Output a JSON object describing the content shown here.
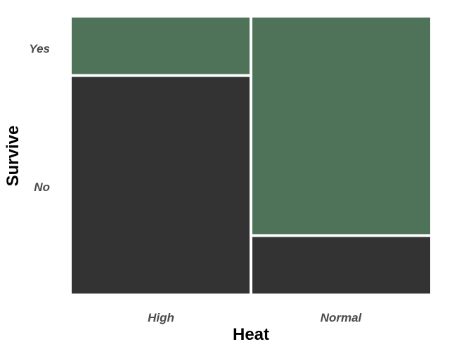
{
  "chart_data": {
    "type": "mosaic",
    "xlabel": "Heat",
    "ylabel": "Survive",
    "x_categories": [
      "High",
      "Normal"
    ],
    "y_categories": [
      "No",
      "Yes"
    ],
    "x_proportions": [
      0.5,
      0.5
    ],
    "cells": [
      {
        "x": "High",
        "y": "Yes",
        "proportion": 0.21
      },
      {
        "x": "High",
        "y": "No",
        "proportion": 0.79
      },
      {
        "x": "Normal",
        "y": "Yes",
        "proportion": 0.79
      },
      {
        "x": "Normal",
        "y": "No",
        "proportion": 0.21
      }
    ],
    "colors": {
      "Yes": "#4e7358",
      "No": "#333333"
    },
    "grid": false,
    "legend": "none"
  }
}
